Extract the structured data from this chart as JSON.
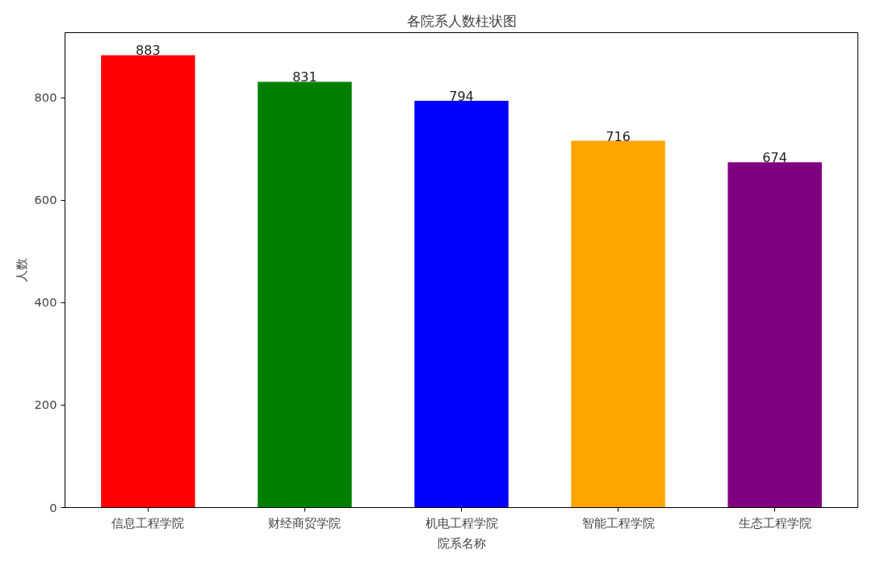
{
  "chart_data": {
    "type": "bar",
    "title": "各院系人数柱状图",
    "xlabel": "院系名称",
    "ylabel": "人数",
    "categories": [
      "信息工程学院",
      "财经商贸学院",
      "机电工程学院",
      "智能工程学院",
      "生态工程学院"
    ],
    "values": [
      883,
      831,
      794,
      716,
      674
    ],
    "colors": [
      "#ff0000",
      "#008000",
      "#0000ff",
      "#ffa500",
      "#800080"
    ],
    "ylim": [
      0,
      927
    ],
    "yticks": [
      0,
      200,
      400,
      600,
      800
    ],
    "grid": false,
    "data_labels": true
  }
}
